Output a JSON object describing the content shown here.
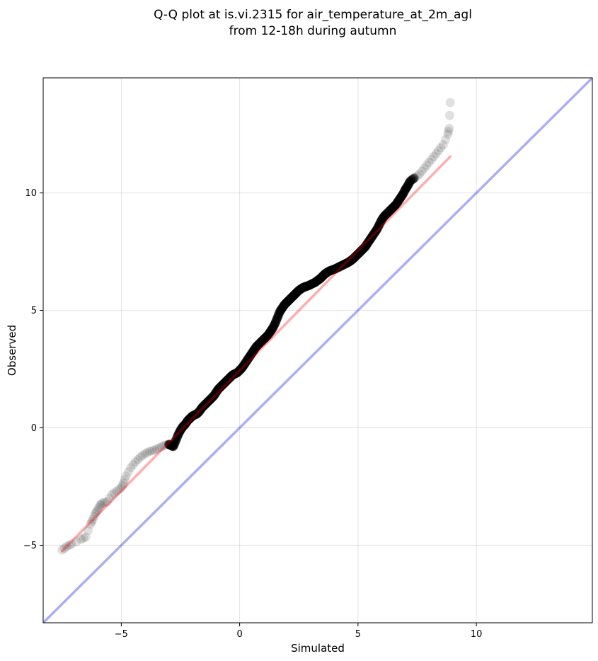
{
  "chart_data": {
    "type": "scatter",
    "title": [
      "Q-Q plot at is.vi.2315 for air_temperature_at_2m_agl",
      "from 12-18h during autumn"
    ],
    "xlabel": "Simulated",
    "ylabel": "Observed",
    "xlim": [
      -8.3,
      14.9
    ],
    "ylim": [
      -8.3,
      14.9
    ],
    "xticks": [
      -5,
      0,
      5,
      10
    ],
    "yticks": [
      -5,
      0,
      5,
      10
    ],
    "xtick_labels": [
      "−5",
      "0",
      "5",
      "10"
    ],
    "ytick_labels": [
      "−5",
      "0",
      "5",
      "10"
    ],
    "grid": true,
    "legend": null,
    "colors": {
      "points": "#000000",
      "fit_line": "#ff0000",
      "identity_line": "#0000e0"
    },
    "fit_line": {
      "x": [
        -7.5,
        8.9
      ],
      "y": [
        -5.25,
        11.55
      ]
    },
    "identity_line": {
      "x": [
        -8.3,
        14.9
      ],
      "y": [
        -8.3,
        14.9
      ]
    },
    "quantiles": {
      "x": [
        -7.5,
        -7.3,
        -7.1,
        -6.7,
        -6.5,
        -6.3,
        -6.2,
        -6.1,
        -6.0,
        -5.9,
        -5.8,
        -5.6,
        -5.4,
        -5.2,
        -5.0,
        -4.9,
        -4.8,
        -4.6,
        -4.4,
        -4.2,
        -4.0,
        -3.8,
        -3.6,
        -3.4,
        -3.2,
        -3.0,
        -2.9,
        -2.8,
        -2.7,
        -2.6,
        -2.5,
        -2.4,
        -2.3,
        -2.2,
        -2.1,
        -2.0,
        -1.9,
        -1.8,
        -1.7,
        -1.6,
        -1.5,
        -1.4,
        -1.3,
        -1.2,
        -1.1,
        -1.0,
        -0.9,
        -0.8,
        -0.7,
        -0.6,
        -0.5,
        -0.4,
        -0.3,
        -0.2,
        -0.1,
        0.0,
        0.1,
        0.2,
        0.3,
        0.4,
        0.5,
        0.6,
        0.7,
        0.8,
        0.9,
        1.0,
        1.1,
        1.2,
        1.3,
        1.4,
        1.5,
        1.6,
        1.7,
        1.8,
        1.9,
        2.0,
        2.1,
        2.2,
        2.3,
        2.4,
        2.5,
        2.6,
        2.7,
        2.8,
        2.9,
        3.0,
        3.1,
        3.2,
        3.3,
        3.4,
        3.5,
        3.6,
        3.7,
        3.8,
        3.9,
        4.0,
        4.1,
        4.2,
        4.3,
        4.4,
        4.5,
        4.6,
        4.7,
        4.8,
        4.9,
        5.0,
        5.1,
        5.2,
        5.3,
        5.4,
        5.5,
        5.6,
        5.7,
        5.8,
        5.9,
        6.0,
        6.1,
        6.2,
        6.3,
        6.4,
        6.5,
        6.6,
        6.7,
        6.8,
        6.9,
        7.0,
        7.1,
        7.2,
        7.4,
        7.6,
        7.8,
        8.0,
        8.2,
        8.4,
        8.6,
        8.8,
        8.85,
        8.9
      ],
      "y": [
        -5.2,
        -5.05,
        -4.95,
        -4.75,
        -4.65,
        -4.1,
        -3.9,
        -3.65,
        -3.5,
        -3.3,
        -3.2,
        -3.15,
        -2.85,
        -2.7,
        -2.55,
        -2.35,
        -2.05,
        -1.7,
        -1.45,
        -1.25,
        -1.1,
        -1.0,
        -0.95,
        -0.85,
        -0.75,
        -0.7,
        -0.75,
        -0.8,
        -0.55,
        -0.3,
        -0.1,
        0.05,
        0.15,
        0.3,
        0.4,
        0.5,
        0.55,
        0.6,
        0.7,
        0.85,
        0.95,
        1.05,
        1.15,
        1.25,
        1.35,
        1.5,
        1.65,
        1.75,
        1.85,
        1.95,
        2.05,
        2.15,
        2.25,
        2.3,
        2.35,
        2.45,
        2.55,
        2.7,
        2.85,
        3.0,
        3.15,
        3.3,
        3.45,
        3.55,
        3.65,
        3.75,
        3.85,
        3.95,
        4.1,
        4.25,
        4.45,
        4.7,
        4.95,
        5.1,
        5.25,
        5.35,
        5.45,
        5.55,
        5.65,
        5.75,
        5.85,
        5.92,
        5.98,
        6.02,
        6.05,
        6.1,
        6.15,
        6.2,
        6.28,
        6.35,
        6.45,
        6.55,
        6.62,
        6.68,
        6.72,
        6.75,
        6.8,
        6.85,
        6.9,
        6.95,
        7.0,
        7.05,
        7.12,
        7.2,
        7.3,
        7.4,
        7.5,
        7.6,
        7.7,
        7.85,
        8.0,
        8.15,
        8.3,
        8.45,
        8.65,
        8.85,
        9.0,
        9.1,
        9.2,
        9.3,
        9.4,
        9.5,
        9.65,
        9.8,
        9.95,
        10.15,
        10.3,
        10.5,
        10.65,
        10.8,
        11.05,
        11.3,
        11.55,
        11.8,
        12.05,
        12.5,
        12.75,
        13.85
      ]
    }
  }
}
